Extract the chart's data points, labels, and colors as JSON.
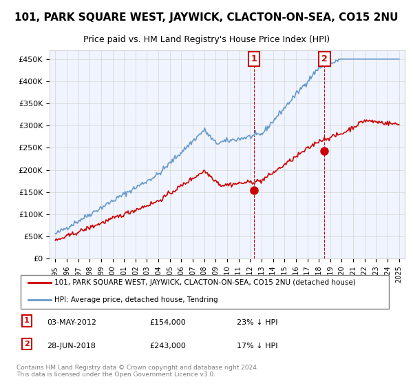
{
  "title": "101, PARK SQUARE WEST, JAYWICK, CLACTON-ON-SEA, CO15 2NU",
  "subtitle": "Price paid vs. HM Land Registry's House Price Index (HPI)",
  "legend_line1": "101, PARK SQUARE WEST, JAYWICK, CLACTON-ON-SEA, CO15 2NU (detached house)",
  "legend_line2": "HPI: Average price, detached house, Tendring",
  "annotation1_label": "1",
  "annotation1_date": "03-MAY-2012",
  "annotation1_price": "£154,000",
  "annotation1_hpi": "23% ↓ HPI",
  "annotation1_year": 2012.35,
  "annotation1_value": 154000,
  "annotation2_label": "2",
  "annotation2_date": "28-JUN-2018",
  "annotation2_price": "£243,000",
  "annotation2_hpi": "17% ↓ HPI",
  "annotation2_year": 2018.5,
  "annotation2_value": 243000,
  "footer": "Contains HM Land Registry data © Crown copyright and database right 2024.\nThis data is licensed under the Open Government Licence v3.0.",
  "hpi_color": "#6699cc",
  "price_color": "#cc0000",
  "background_color": "#f0f4ff",
  "plot_bg_color": "#ffffff",
  "ylim": [
    0,
    470000
  ],
  "yticks": [
    0,
    50000,
    100000,
    150000,
    200000,
    250000,
    300000,
    350000,
    400000,
    450000
  ],
  "xlim_start": 1994.5,
  "xlim_end": 2025.5
}
